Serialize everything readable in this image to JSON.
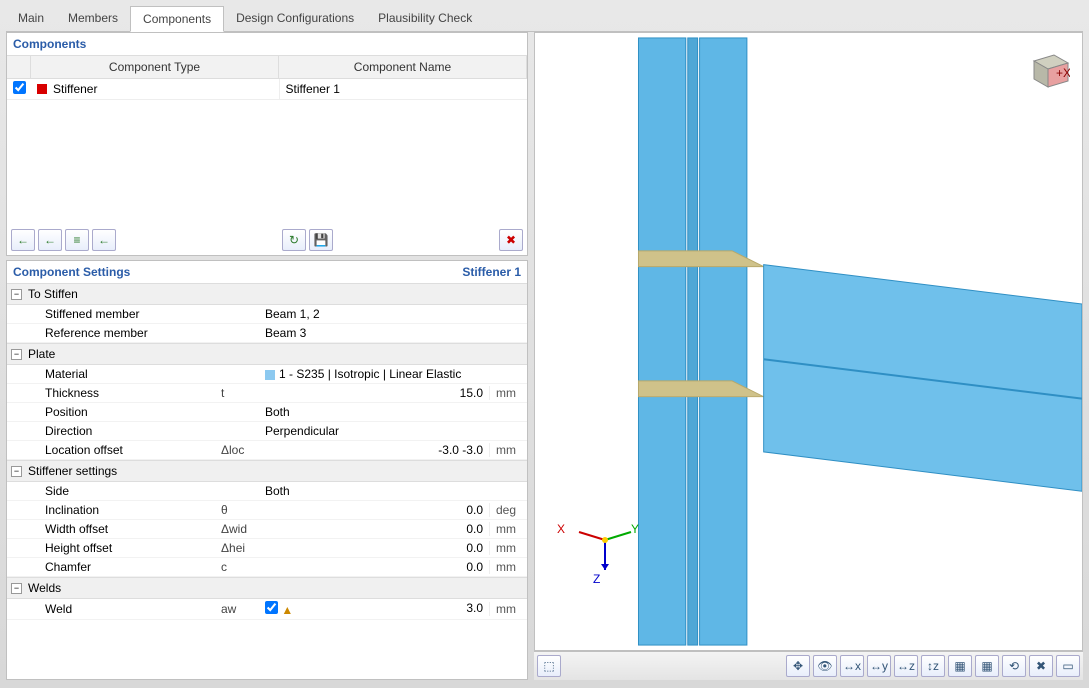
{
  "tabs": {
    "main": "Main",
    "members": "Members",
    "components": "Components",
    "design": "Design Configurations",
    "plaus": "Plausibility Check",
    "active": "components"
  },
  "components": {
    "title": "Components",
    "col_type": "Component Type",
    "col_name": "Component Name",
    "rows": [
      {
        "type": "Stiffener",
        "name": "Stiffener 1",
        "color": "#d80000",
        "checked": true
      }
    ]
  },
  "toolbar_icons": {
    "g1": [
      "←",
      "←",
      "≡",
      "←"
    ],
    "g2": [
      "↻",
      "💾"
    ],
    "g3": [
      "✖"
    ]
  },
  "settings": {
    "title": "Component Settings",
    "subtitle": "Stiffener 1",
    "groups": [
      {
        "title": "To Stiffen",
        "rows": [
          {
            "label": "Stiffened member",
            "sym": "",
            "val": "Beam 1, 2",
            "unit": "",
            "align": "left"
          },
          {
            "label": "Reference member",
            "sym": "",
            "val": "Beam 3",
            "unit": "",
            "align": "left"
          }
        ]
      },
      {
        "title": "Plate",
        "rows": [
          {
            "label": "Material",
            "sym": "",
            "val": "1 - S235 | Isotropic | Linear Elastic",
            "unit": "",
            "align": "left",
            "swatch": true
          },
          {
            "label": "Thickness",
            "sym": "t",
            "val": "15.0",
            "unit": "mm",
            "align": "right"
          },
          {
            "label": "Position",
            "sym": "",
            "val": "Both",
            "unit": "",
            "align": "left"
          },
          {
            "label": "Direction",
            "sym": "",
            "val": "Perpendicular",
            "unit": "",
            "align": "left"
          },
          {
            "label": "Location offset",
            "sym": "Δloc",
            "val": "-3.0 -3.0",
            "unit": "mm",
            "align": "right"
          }
        ]
      },
      {
        "title": "Stiffener settings",
        "rows": [
          {
            "label": "Side",
            "sym": "",
            "val": "Both",
            "unit": "",
            "align": "left"
          },
          {
            "label": "Inclination",
            "sym": "θ",
            "val": "0.0",
            "unit": "deg",
            "align": "right"
          },
          {
            "label": "Width offset",
            "sym": "Δwid",
            "val": "0.0",
            "unit": "mm",
            "align": "right"
          },
          {
            "label": "Height offset",
            "sym": "Δhei",
            "val": "0.0",
            "unit": "mm",
            "align": "right"
          },
          {
            "label": "Chamfer",
            "sym": "c",
            "val": "0.0",
            "unit": "mm",
            "align": "right"
          }
        ]
      },
      {
        "title": "Welds",
        "rows": [
          {
            "label": "Weld",
            "sym": "aw",
            "val": "3.0",
            "unit": "mm",
            "align": "right",
            "weldcheck": true
          }
        ]
      }
    ]
  },
  "viewport": {
    "col_color": "#5fb7e6",
    "col_edge": "#2f8fc4",
    "plate_top": "#cfc28a",
    "beam_color": "#6fc0eb",
    "axis": {
      "x": "X",
      "y": "Y",
      "z": "Z"
    }
  },
  "view_toolbar": {
    "left": [
      "⬚"
    ],
    "right": [
      "✥",
      "👁",
      "↔x",
      "↔y",
      "↔z",
      "↕z",
      "▦",
      "▦",
      "⟲",
      "✖",
      "▭"
    ]
  }
}
